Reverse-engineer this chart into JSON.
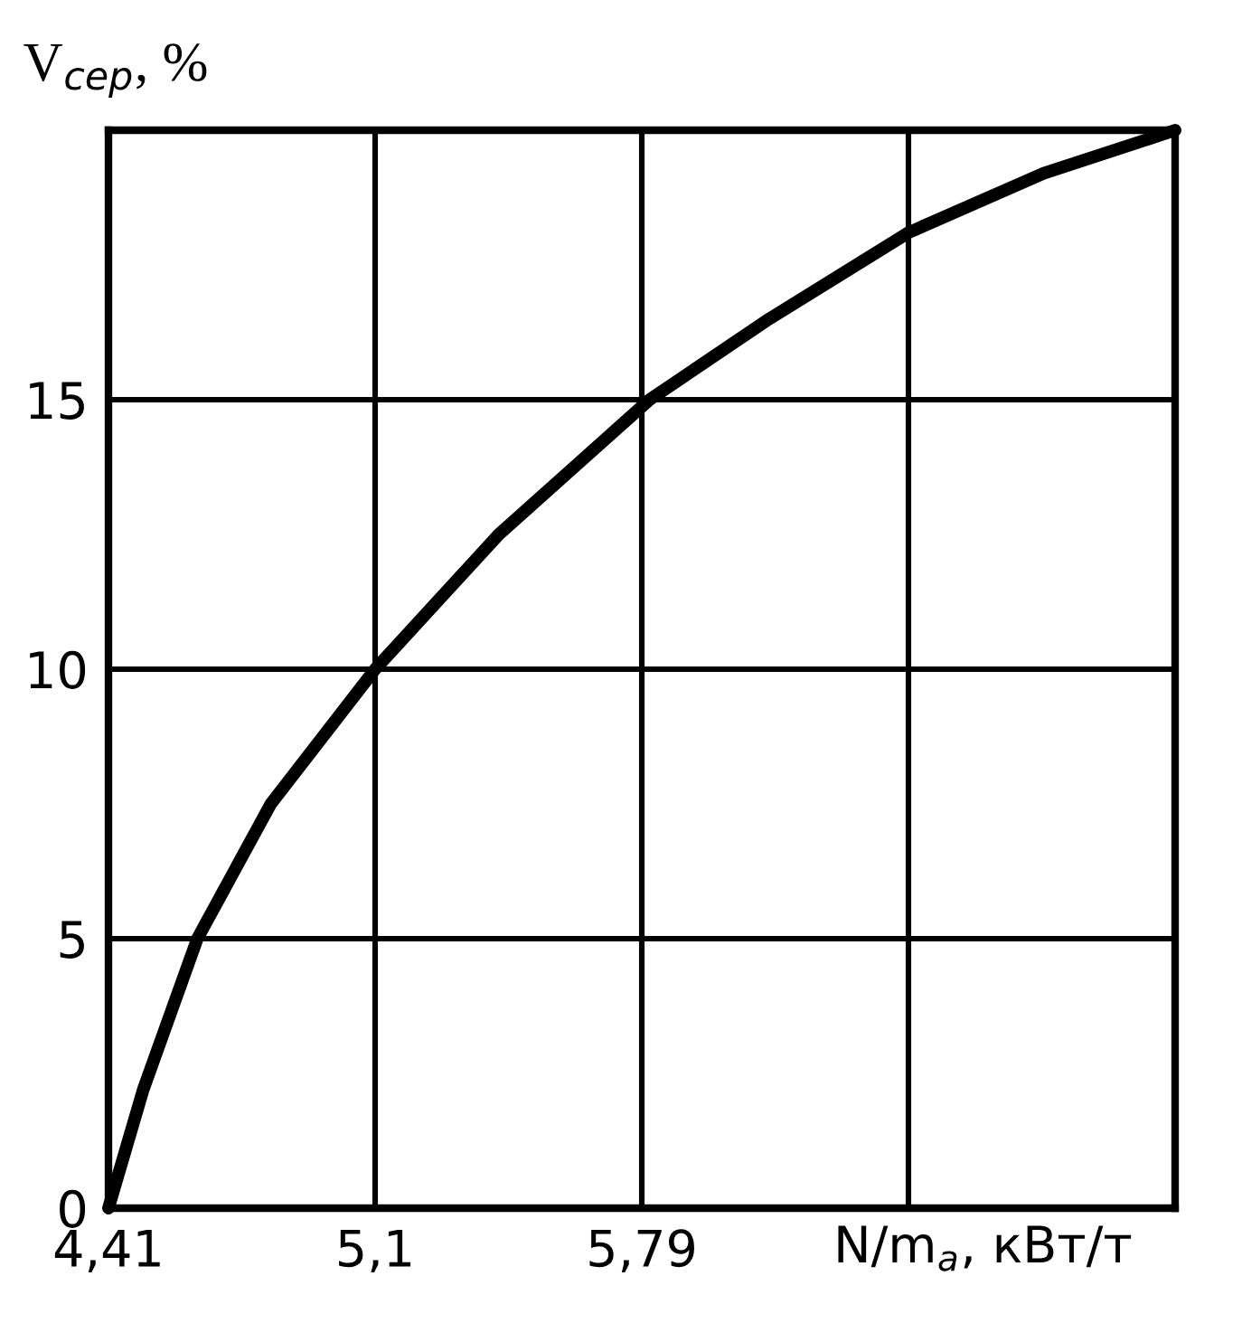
{
  "chart_data": {
    "type": "line",
    "xlabel": "N/m$_{a}$, кВт/т",
    "ylabel": "V$_{сер}$, %",
    "x": [
      4.41,
      4.5,
      4.64,
      4.83,
      5.1,
      5.42,
      5.81,
      6.12,
      6.48,
      6.83,
      7.17
    ],
    "series": [
      {
        "color": "#000000",
        "values": [
          0,
          2.2,
          5,
          7.5,
          10,
          12.5,
          15,
          16.5,
          18.1,
          19.2,
          20
        ]
      }
    ],
    "xlim": [
      4.41,
      7.17
    ],
    "ylim": [
      0,
      20
    ],
    "xticks": [
      {
        "value": 4.41,
        "label": "4,41"
      },
      {
        "value": 5.1,
        "label": "5,1"
      },
      {
        "value": 5.79,
        "label": "5,79"
      },
      {
        "value": 6.48,
        "label": null
      }
    ],
    "yticks": [
      0,
      5,
      10,
      15,
      {
        "value": 20,
        "label": null
      }
    ],
    "grid": true,
    "marker": "none",
    "line_style": "solid"
  }
}
